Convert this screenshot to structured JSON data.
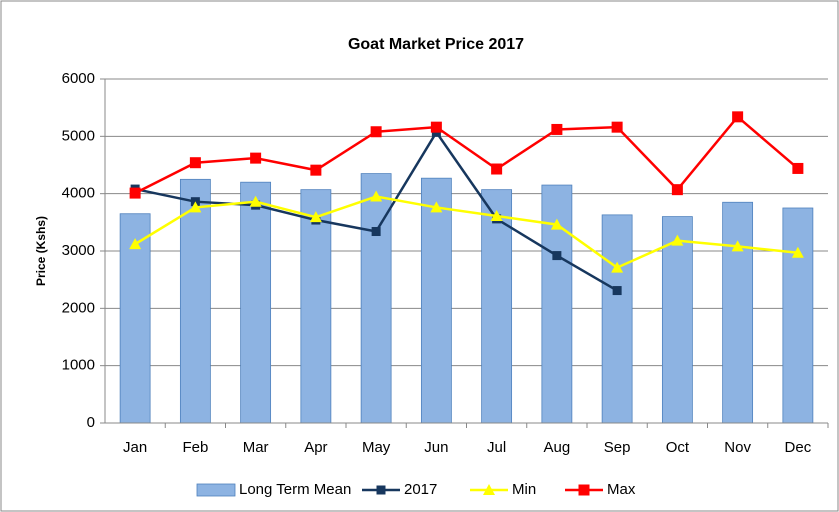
{
  "chart_data": {
    "type": "bar",
    "title": "Goat Market Price 2017",
    "y_label": "Price (Kshs)",
    "categories": [
      "Jan",
      "Feb",
      "Mar",
      "Apr",
      "May",
      "Jun",
      "Jul",
      "Aug",
      "Sep",
      "Oct",
      "Nov",
      "Dec"
    ],
    "series": [
      {
        "name": "Long Term Mean",
        "type": "bar",
        "color": "#8db3e2",
        "values": [
          3650,
          4250,
          4200,
          4070,
          4350,
          4270,
          4070,
          4150,
          3630,
          3600,
          3850,
          3750
        ]
      },
      {
        "name": "2017",
        "type": "line",
        "marker": "square",
        "color": "#17375e",
        "values": [
          4080,
          3860,
          3800,
          3540,
          3340,
          5070,
          3560,
          2920,
          2310,
          null,
          null,
          null
        ]
      },
      {
        "name": "Min",
        "type": "line",
        "marker": "triangle",
        "color": "#ffff00",
        "values": [
          3120,
          3760,
          3860,
          3590,
          3950,
          3760,
          3610,
          3460,
          2710,
          3180,
          3080,
          2970
        ]
      },
      {
        "name": "Max",
        "type": "line",
        "marker": "square",
        "color": "#ff0000",
        "values": [
          4010,
          4540,
          4620,
          4410,
          5080,
          5160,
          4430,
          5120,
          5160,
          4070,
          5340,
          4440
        ]
      }
    ],
    "ylim": [
      0,
      6000
    ],
    "yticks": [
      0,
      1000,
      2000,
      3000,
      4000,
      5000,
      6000
    ],
    "grid": true,
    "legend": "bottom"
  }
}
